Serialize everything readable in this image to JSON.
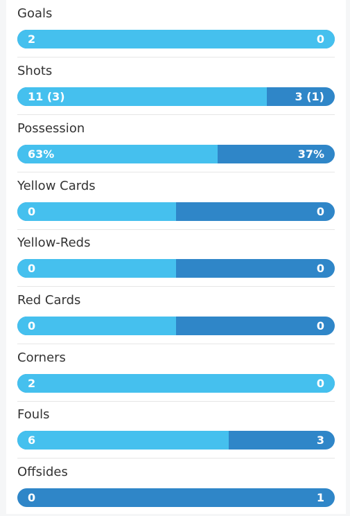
{
  "colors": {
    "home_bar": "#45c0ee",
    "away_bar": "#2f86c8",
    "label_text": "#333333"
  },
  "stats": [
    {
      "label": "Goals",
      "home": "2",
      "away": "0",
      "home_share": 1.0
    },
    {
      "label": "Shots",
      "home": "11 (3)",
      "away": "3 (1)",
      "home_share": 0.786
    },
    {
      "label": "Possession",
      "home": "63%",
      "away": "37%",
      "home_share": 0.63
    },
    {
      "label": "Yellow Cards",
      "home": "0",
      "away": "0",
      "home_share": 0.5
    },
    {
      "label": "Yellow-Reds",
      "home": "0",
      "away": "0",
      "home_share": 0.5
    },
    {
      "label": "Red Cards",
      "home": "0",
      "away": "0",
      "home_share": 0.5
    },
    {
      "label": "Corners",
      "home": "2",
      "away": "0",
      "home_share": 1.0
    },
    {
      "label": "Fouls",
      "home": "6",
      "away": "3",
      "home_share": 0.667
    },
    {
      "label": "Offsides",
      "home": "0",
      "away": "1",
      "home_share": 0.0
    }
  ]
}
